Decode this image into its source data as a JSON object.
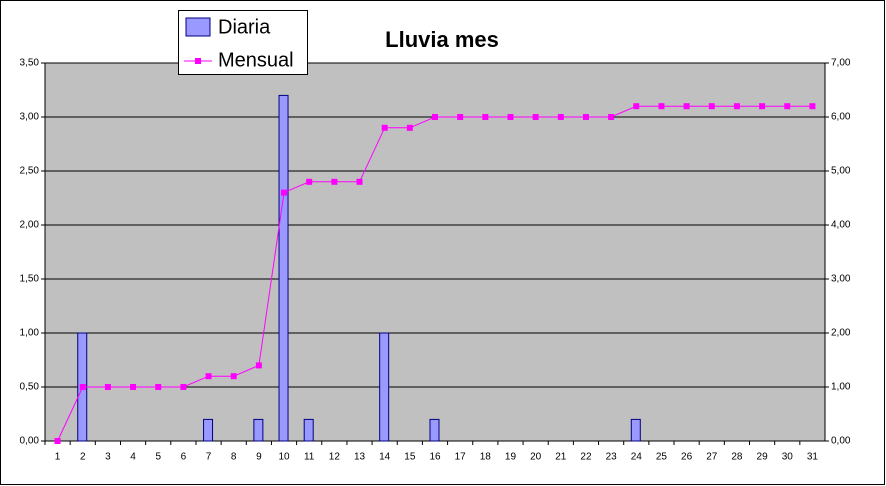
{
  "chart_data": {
    "type": "bar-line",
    "title": "Lluvia mes",
    "categories": [
      "1",
      "2",
      "3",
      "4",
      "5",
      "6",
      "7",
      "8",
      "9",
      "10",
      "11",
      "12",
      "13",
      "14",
      "15",
      "16",
      "17",
      "18",
      "19",
      "20",
      "21",
      "22",
      "23",
      "24",
      "25",
      "26",
      "27",
      "28",
      "29",
      "30",
      "31"
    ],
    "series": [
      {
        "name": "Diaria",
        "type": "bar",
        "color": "#9999ff",
        "values": [
          0,
          1.0,
          0,
          0,
          0,
          0,
          0.2,
          0,
          0.2,
          3.2,
          0.2,
          0,
          0,
          1.0,
          0,
          0.2,
          0,
          0,
          0,
          0,
          0,
          0,
          0,
          0.2,
          0,
          0,
          0,
          0,
          0,
          0,
          0
        ]
      },
      {
        "name": "Mensual",
        "type": "line",
        "axis": "y2",
        "color": "#ff00ff",
        "values": [
          0,
          1.0,
          1.0,
          1.0,
          1.0,
          1.0,
          1.2,
          1.2,
          1.4,
          4.6,
          4.8,
          4.8,
          4.8,
          5.8,
          5.8,
          6.0,
          6.0,
          6.0,
          6.0,
          6.0,
          6.0,
          6.0,
          6.0,
          6.2,
          6.2,
          6.2,
          6.2,
          6.2,
          6.2,
          6.2,
          6.2
        ]
      }
    ],
    "ylim": [
      0,
      3.5
    ],
    "yticks": [
      {
        "value": 0,
        "label": "0,00"
      },
      {
        "value": 0.5,
        "label": "0,50"
      },
      {
        "value": 1,
        "label": "1,00"
      },
      {
        "value": 1.5,
        "label": "1,50"
      },
      {
        "value": 2,
        "label": "2,00"
      },
      {
        "value": 2.5,
        "label": "2,50"
      },
      {
        "value": 3,
        "label": "3,00"
      },
      {
        "value": 3.5,
        "label": "3,50"
      }
    ],
    "y2lim": [
      0,
      7
    ],
    "y2ticks": [
      {
        "value": 0,
        "label": "0,00"
      },
      {
        "value": 1,
        "label": "1,00"
      },
      {
        "value": 2,
        "label": "2,00"
      },
      {
        "value": 3,
        "label": "3,00"
      },
      {
        "value": 4,
        "label": "4,00"
      },
      {
        "value": 5,
        "label": "5,00"
      },
      {
        "value": 6,
        "label": "6,00"
      },
      {
        "value": 7,
        "label": "7,00"
      }
    ],
    "grid": true,
    "legend": "top-left"
  }
}
